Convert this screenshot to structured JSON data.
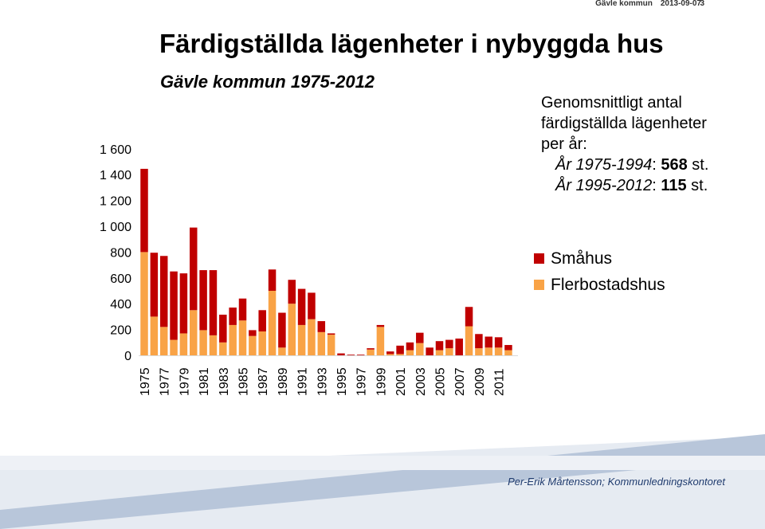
{
  "header": {
    "org": "Gävle kommun",
    "date": "2013-09-07",
    "page": "3"
  },
  "title": "Färdigställda lägenheter i nybyggda hus",
  "subtitle": "Gävle kommun 1975-2012",
  "note": {
    "line1": "Genomsnittligt antal",
    "line2": "färdigställda lägenheter",
    "line3": "per år:",
    "row1_label": "År 1975-1994",
    "row1_sep": ": ",
    "row1_value": "568",
    "row1_unit": " st.",
    "row2_label": "År 1995-2012",
    "row2_sep": ": ",
    "row2_value": "115",
    "row2_unit": " st."
  },
  "footer": "Per-Erik Mårtensson; Kommunledningskontoret",
  "colors": {
    "smahus": "#c00000",
    "flerbostadshus": "#f9a346",
    "band": "#b8c6da"
  },
  "chart_data": {
    "type": "bar",
    "stacked": true,
    "categories": [
      "1975",
      "1976",
      "1977",
      "1978",
      "1979",
      "1980",
      "1981",
      "1982",
      "1983",
      "1984",
      "1985",
      "1986",
      "1987",
      "1988",
      "1989",
      "1990",
      "1991",
      "1992",
      "1993",
      "1994",
      "1995",
      "1996",
      "1997",
      "1998",
      "1999",
      "2000",
      "2001",
      "2002",
      "2003",
      "2004",
      "2005",
      "2006",
      "2007",
      "2008",
      "2009",
      "2010",
      "2011",
      "2012"
    ],
    "tick_labels": [
      "1975",
      "1977",
      "1979",
      "1981",
      "1983",
      "1985",
      "1987",
      "1989",
      "1991",
      "1993",
      "1995",
      "1997",
      "1999",
      "2001",
      "2003",
      "2005",
      "2007",
      "2009",
      "2011"
    ],
    "yticks": [
      "0",
      "200",
      "400",
      "600",
      "800",
      "1 000",
      "1 200",
      "1 400",
      "1 600"
    ],
    "ylim": [
      0,
      1600
    ],
    "series": [
      {
        "name": "Flerbostadshus",
        "values": [
          800,
          300,
          220,
          120,
          170,
          350,
          195,
          155,
          100,
          235,
          270,
          150,
          185,
          500,
          60,
          400,
          235,
          280,
          180,
          160,
          0,
          0,
          0,
          45,
          220,
          10,
          10,
          40,
          95,
          0,
          40,
          55,
          0,
          225,
          55,
          60,
          60,
          40
        ]
      },
      {
        "name": "Småhus",
        "values": [
          645,
          495,
          550,
          530,
          465,
          640,
          465,
          505,
          215,
          135,
          170,
          45,
          165,
          165,
          270,
          185,
          280,
          205,
          85,
          10,
          15,
          5,
          5,
          10,
          15,
          20,
          65,
          60,
          80,
          60,
          70,
          65,
          130,
          150,
          110,
          85,
          80,
          40
        ]
      }
    ]
  }
}
